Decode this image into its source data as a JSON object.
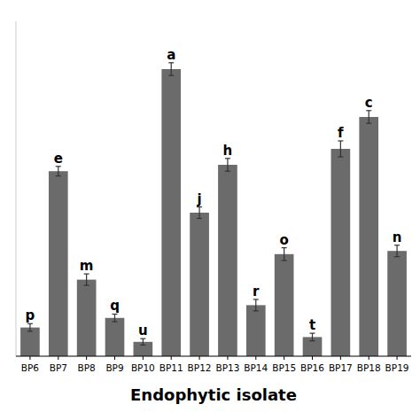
{
  "chart_data": {
    "type": "bar",
    "categories": [
      "BP6",
      "BP7",
      "BP8",
      "BP9",
      "BP10",
      "BP11",
      "BP12",
      "BP13",
      "BP14",
      "BP15",
      "BP16",
      "BP17",
      "BP18",
      "BP19"
    ],
    "values": [
      9,
      58,
      24,
      12,
      4.5,
      90,
      45,
      60,
      16,
      32,
      6,
      65,
      75,
      33
    ],
    "errors": [
      1.2,
      1.5,
      1.8,
      1.2,
      1.0,
      2.0,
      1.8,
      2.0,
      1.8,
      2.0,
      1.2,
      2.5,
      2.0,
      1.8
    ],
    "annotations": [
      "p",
      "e",
      "m",
      "q",
      "u",
      "a",
      "j",
      "h",
      "r",
      "o",
      "t",
      "f",
      "c",
      "n"
    ],
    "color": "#6b6b6b",
    "xlabel": "Endophytic isolate",
    "ylim": [
      0,
      105
    ],
    "yticks": [],
    "tick_labels": "x",
    "grid": false
  }
}
